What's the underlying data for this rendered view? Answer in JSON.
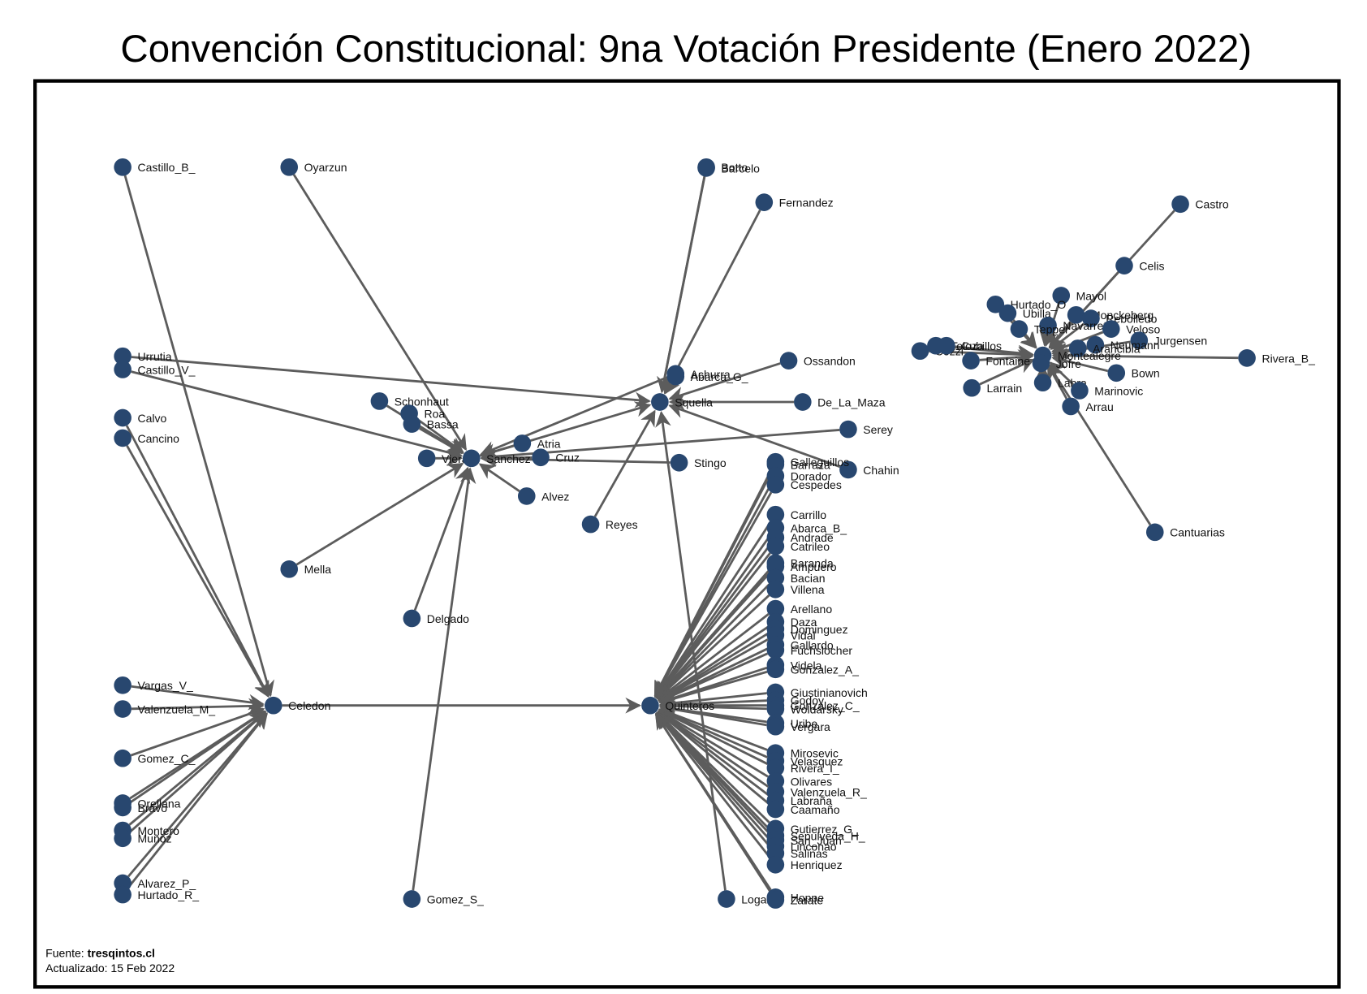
{
  "title": "Convención Constitucional: 9na Votación Presidente (Enero 2022)",
  "footer": {
    "source_prefix": "Fuente: ",
    "source_site": "tresqintos.cl",
    "updated": "Actualizado: 15 Feb 2022"
  },
  "colors": {
    "node": "#28476f",
    "edge": "#5c5c5c"
  },
  "nodes": [
    "Castillo_B_",
    "Oyarzun",
    "Urrutia",
    "Castillo_V_",
    "Calvo",
    "Cancino",
    "Vargas_V_",
    "Valenzuela_M_",
    "Celedon",
    "Gomez_C_",
    "Orellana",
    "Bravo",
    "Montero",
    "Muñoz",
    "Alvarez_P_",
    "Hurtado_R_",
    "Schonhaut",
    "Roa",
    "Bassa",
    "Viera",
    "Sanchez",
    "Atria",
    "Cruz",
    "Alvez",
    "Stingo",
    "Mella",
    "Delgado",
    "Gomez_S_",
    "Botto",
    "Barcelo",
    "Fernandez",
    "Achurra",
    "Abarca_G_",
    "Ossandon",
    "Squella",
    "De_La_Maza",
    "Serey",
    "Chahin",
    "Reyes",
    "Logan",
    "Quinteros",
    "Galleguillos",
    "Barraza",
    "Dorador",
    "Cespedes",
    "Carrillo",
    "Abarca_B_",
    "Andrade",
    "Catrileo",
    "Baranda",
    "Ampuero",
    "Bacian",
    "Villena",
    "Arellano",
    "Daza",
    "Dominguez",
    "Vidal",
    "Gallardo",
    "Fuchslocher",
    "Videla",
    "Gonzalez_A_",
    "Giustinianovich",
    "Godoy",
    "Gonzalez_C_",
    "Woldarsky",
    "Uribe",
    "Vergara",
    "Mirosevic",
    "Velasquez",
    "Rivera_I_",
    "Olivares",
    "Valenzuela_R_",
    "Labraña",
    "Caamaño",
    "Gutierrez_G_",
    "Sepulveda_H_",
    "San_Juan",
    "Linconao",
    "Salinas",
    "Henriquez",
    "Hoppe",
    "Zarate",
    "Castro",
    "Celis",
    "Mayol",
    "Hurtado_O",
    "Ubilla",
    "Monckeberg",
    "Rebolledo",
    "Navarrete",
    "Tepper",
    "Veloso",
    "Jurgensen",
    "Neumann",
    "Arancibia",
    "Rivera_B_",
    "Cozzi",
    "Toloza",
    "Cubillos",
    "Fontaine",
    "Larrain",
    "Montealegre",
    "Jofre",
    "Bown",
    "Labra",
    "Marinovic",
    "Arrau",
    "Cantuarias"
  ],
  "edges": [
    [
      "Castillo_B_",
      "Celedon"
    ],
    [
      "Calvo",
      "Celedon"
    ],
    [
      "Cancino",
      "Celedon"
    ],
    [
      "Vargas_V_",
      "Celedon"
    ],
    [
      "Valenzuela_M_",
      "Celedon"
    ],
    [
      "Gomez_C_",
      "Celedon"
    ],
    [
      "Orellana",
      "Celedon"
    ],
    [
      "Bravo",
      "Celedon"
    ],
    [
      "Montero",
      "Celedon"
    ],
    [
      "Muñoz",
      "Celedon"
    ],
    [
      "Alvarez_P_",
      "Celedon"
    ],
    [
      "Hurtado_R_",
      "Celedon"
    ],
    [
      "Celedon",
      "Quinteros"
    ],
    [
      "Oyarzun",
      "Sanchez"
    ],
    [
      "Castillo_V_",
      "Sanchez"
    ],
    [
      "Urrutia",
      "Squella"
    ],
    [
      "Schonhaut",
      "Sanchez"
    ],
    [
      "Roa",
      "Sanchez"
    ],
    [
      "Bassa",
      "Sanchez"
    ],
    [
      "Viera",
      "Sanchez"
    ],
    [
      "Atria",
      "Sanchez"
    ],
    [
      "Cruz",
      "Sanchez"
    ],
    [
      "Alvez",
      "Sanchez"
    ],
    [
      "Stingo",
      "Sanchez"
    ],
    [
      "Mella",
      "Sanchez"
    ],
    [
      "Delgado",
      "Sanchez"
    ],
    [
      "Gomez_S_",
      "Sanchez"
    ],
    [
      "Serey",
      "Sanchez"
    ],
    [
      "Achurra",
      "Sanchez"
    ],
    [
      "Sanchez",
      "Squella"
    ],
    [
      "Botto",
      "Squella"
    ],
    [
      "Barcelo",
      "Squella"
    ],
    [
      "Fernandez",
      "Squella"
    ],
    [
      "Abarca_G_",
      "Squella"
    ],
    [
      "Ossandon",
      "Squella"
    ],
    [
      "De_La_Maza",
      "Squella"
    ],
    [
      "Chahin",
      "Squella"
    ],
    [
      "Reyes",
      "Squella"
    ],
    [
      "Logan",
      "Squella"
    ],
    [
      "Galleguillos",
      "Quinteros"
    ],
    [
      "Barraza",
      "Quinteros"
    ],
    [
      "Dorador",
      "Quinteros"
    ],
    [
      "Cespedes",
      "Quinteros"
    ],
    [
      "Carrillo",
      "Quinteros"
    ],
    [
      "Abarca_B_",
      "Quinteros"
    ],
    [
      "Andrade",
      "Quinteros"
    ],
    [
      "Catrileo",
      "Quinteros"
    ],
    [
      "Baranda",
      "Quinteros"
    ],
    [
      "Ampuero",
      "Quinteros"
    ],
    [
      "Bacian",
      "Quinteros"
    ],
    [
      "Villena",
      "Quinteros"
    ],
    [
      "Arellano",
      "Quinteros"
    ],
    [
      "Daza",
      "Quinteros"
    ],
    [
      "Dominguez",
      "Quinteros"
    ],
    [
      "Vidal",
      "Quinteros"
    ],
    [
      "Gallardo",
      "Quinteros"
    ],
    [
      "Fuchslocher",
      "Quinteros"
    ],
    [
      "Videla",
      "Quinteros"
    ],
    [
      "Gonzalez_A_",
      "Quinteros"
    ],
    [
      "Giustinianovich",
      "Quinteros"
    ],
    [
      "Godoy",
      "Quinteros"
    ],
    [
      "Gonzalez_C_",
      "Quinteros"
    ],
    [
      "Woldarsky",
      "Quinteros"
    ],
    [
      "Uribe",
      "Quinteros"
    ],
    [
      "Vergara",
      "Quinteros"
    ],
    [
      "Mirosevic",
      "Quinteros"
    ],
    [
      "Velasquez",
      "Quinteros"
    ],
    [
      "Rivera_I_",
      "Quinteros"
    ],
    [
      "Olivares",
      "Quinteros"
    ],
    [
      "Valenzuela_R_",
      "Quinteros"
    ],
    [
      "Labraña",
      "Quinteros"
    ],
    [
      "Caamaño",
      "Quinteros"
    ],
    [
      "Gutierrez_G_",
      "Quinteros"
    ],
    [
      "Sepulveda_H_",
      "Quinteros"
    ],
    [
      "San_Juan",
      "Quinteros"
    ],
    [
      "Linconao",
      "Quinteros"
    ],
    [
      "Salinas",
      "Quinteros"
    ],
    [
      "Henriquez",
      "Quinteros"
    ],
    [
      "Hoppe",
      "Quinteros"
    ],
    [
      "Zarate",
      "Quinteros"
    ],
    [
      "Castro",
      "Montealegre"
    ],
    [
      "Celis",
      "Montealegre"
    ],
    [
      "Mayol",
      "Montealegre"
    ],
    [
      "Hurtado_O",
      "Montealegre"
    ],
    [
      "Ubilla",
      "Montealegre"
    ],
    [
      "Monckeberg",
      "Montealegre"
    ],
    [
      "Rebolledo",
      "Montealegre"
    ],
    [
      "Navarrete",
      "Montealegre"
    ],
    [
      "Tepper",
      "Montealegre"
    ],
    [
      "Veloso",
      "Montealegre"
    ],
    [
      "Jurgensen",
      "Montealegre"
    ],
    [
      "Neumann",
      "Montealegre"
    ],
    [
      "Arancibia",
      "Montealegre"
    ],
    [
      "Rivera_B_",
      "Montealegre"
    ],
    [
      "Cozzi",
      "Montealegre"
    ],
    [
      "Toloza",
      "Montealegre"
    ],
    [
      "Cubillos",
      "Montealegre"
    ],
    [
      "Fontaine",
      "Montealegre"
    ],
    [
      "Larrain",
      "Montealegre"
    ],
    [
      "Jofre",
      "Montealegre"
    ],
    [
      "Bown",
      "Montealegre"
    ],
    [
      "Labra",
      "Montealegre"
    ],
    [
      "Marinovic",
      "Montealegre"
    ],
    [
      "Arrau",
      "Montealegre"
    ],
    [
      "Cantuarias",
      "Montealegre"
    ]
  ]
}
